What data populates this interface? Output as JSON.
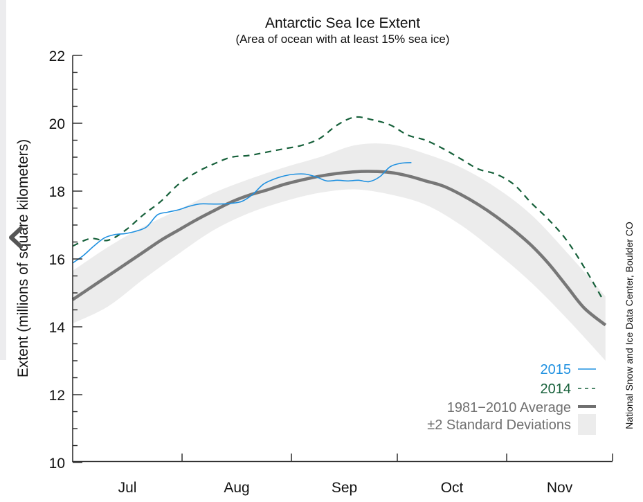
{
  "chart_data": {
    "type": "line",
    "title": "Antarctic Sea Ice Extent",
    "subtitle": "(Area of ocean with at least 15% sea ice)",
    "xlabel": "",
    "ylabel": "Extent (millions of square kilometers)",
    "ylim": [
      10,
      22
    ],
    "yticks": [
      10,
      12,
      14,
      16,
      18,
      20,
      22
    ],
    "x_unit": "days since Jul 1",
    "xlim": [
      0,
      153
    ],
    "month_ticks": [
      0,
      31,
      62,
      92,
      123,
      153
    ],
    "month_labels": [
      {
        "label": "Jul",
        "center": 15.5
      },
      {
        "label": "Aug",
        "center": 46.5
      },
      {
        "label": "Sep",
        "center": 77
      },
      {
        "label": "Oct",
        "center": 107.5
      },
      {
        "label": "Nov",
        "center": 138
      }
    ],
    "credit": "National Snow and Ice Data Center, Boulder CO",
    "grid": false,
    "legend_position": "bottom-right",
    "series": [
      {
        "name": "2015",
        "style": "solid",
        "color": "#1e90e0",
        "x": [
          0,
          3,
          6,
          9,
          12,
          15,
          18,
          21,
          24,
          27,
          30,
          33,
          36,
          39,
          42,
          45,
          48,
          51,
          54,
          57,
          60,
          63,
          66,
          69,
          72,
          75,
          78,
          81,
          84,
          87,
          90,
          93,
          96
        ],
        "values": [
          15.88,
          16.1,
          16.38,
          16.62,
          16.72,
          16.75,
          16.82,
          16.95,
          17.3,
          17.38,
          17.45,
          17.55,
          17.62,
          17.62,
          17.62,
          17.64,
          17.7,
          17.9,
          18.2,
          18.35,
          18.45,
          18.5,
          18.5,
          18.42,
          18.3,
          18.32,
          18.3,
          18.32,
          18.28,
          18.42,
          18.72,
          18.82,
          18.84
        ]
      },
      {
        "name": "2014",
        "style": "dashed",
        "color": "#16603a",
        "x": [
          0,
          5,
          10,
          15,
          20,
          25,
          30,
          35,
          40,
          45,
          50,
          55,
          60,
          65,
          70,
          75,
          80,
          85,
          90,
          95,
          100,
          105,
          110,
          115,
          120,
          125,
          130,
          135,
          140,
          145,
          150
        ],
        "values": [
          16.38,
          16.6,
          16.55,
          16.85,
          17.3,
          17.7,
          18.2,
          18.55,
          18.8,
          19.0,
          19.05,
          19.15,
          19.25,
          19.35,
          19.55,
          19.95,
          20.18,
          20.1,
          19.95,
          19.65,
          19.5,
          19.25,
          18.95,
          18.65,
          18.5,
          18.2,
          17.65,
          17.15,
          16.55,
          15.75,
          14.85
        ]
      },
      {
        "name": "1981−2010 Average",
        "style": "thick",
        "color": "#777777",
        "x": [
          0,
          5,
          10,
          15,
          20,
          25,
          30,
          35,
          40,
          45,
          50,
          55,
          60,
          65,
          70,
          75,
          80,
          85,
          90,
          95,
          100,
          105,
          110,
          115,
          120,
          125,
          130,
          135,
          140,
          145,
          151
        ],
        "values": [
          14.8,
          15.15,
          15.5,
          15.85,
          16.2,
          16.55,
          16.85,
          17.15,
          17.42,
          17.68,
          17.88,
          18.03,
          18.2,
          18.33,
          18.44,
          18.52,
          18.57,
          18.58,
          18.55,
          18.45,
          18.3,
          18.15,
          17.9,
          17.6,
          17.25,
          16.85,
          16.4,
          15.85,
          15.2,
          14.55,
          14.05
        ]
      },
      {
        "name": "±2 Standard Deviations",
        "style": "band",
        "color": "#ececec",
        "x": [
          0,
          10,
          20,
          30,
          40,
          50,
          60,
          70,
          80,
          90,
          100,
          110,
          120,
          130,
          140,
          151
        ],
        "upper": [
          15.65,
          16.35,
          16.95,
          17.45,
          17.95,
          18.35,
          18.7,
          19.0,
          19.35,
          19.38,
          19.1,
          18.7,
          18.1,
          17.3,
          16.2,
          14.9
        ],
        "lower": [
          14.1,
          14.6,
          15.4,
          16.15,
          16.85,
          17.35,
          17.7,
          17.95,
          18.05,
          17.9,
          17.6,
          17.0,
          16.2,
          15.3,
          14.25,
          13.0
        ]
      }
    ]
  },
  "legend": [
    {
      "label": "2015",
      "color": "#1e90e0"
    },
    {
      "label": "2014",
      "color": "#16603a"
    },
    {
      "label": "1981−2010 Average",
      "color": "#6f6f6f"
    },
    {
      "label": "±2 Standard Deviations",
      "color": "#6f6f6f"
    }
  ],
  "overlay": {
    "icon": "chevron-left-icon"
  }
}
